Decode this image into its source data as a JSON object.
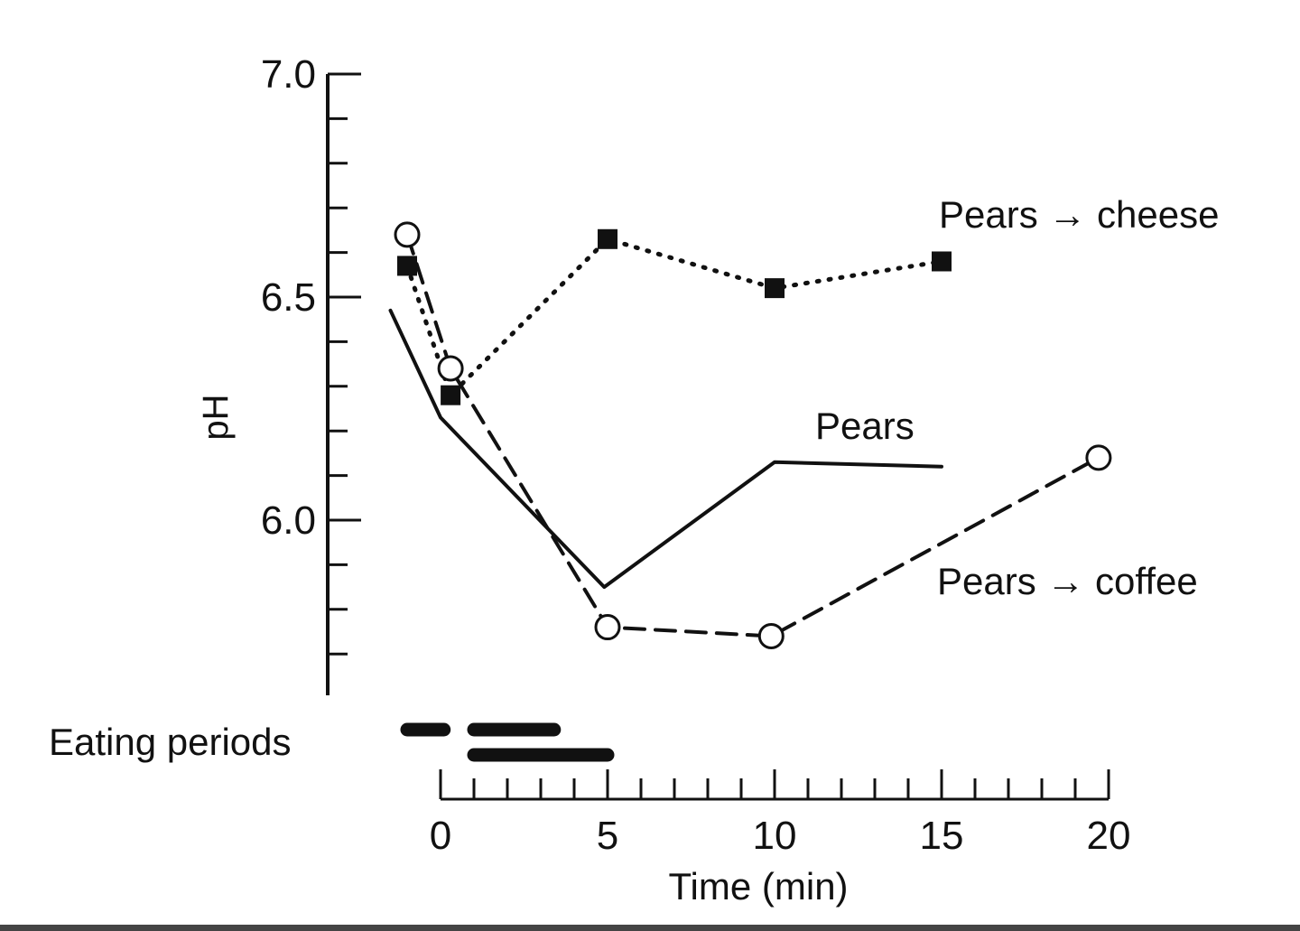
{
  "chart_data": {
    "type": "line",
    "title": "",
    "xlabel": "Time (min)",
    "ylabel": "pH",
    "xlim": [
      -1.5,
      20
    ],
    "ylim": [
      5.6,
      7.0
    ],
    "x_ticks": [
      0,
      5,
      10,
      15,
      20
    ],
    "x_tick_labels": [
      "0",
      "5",
      "10",
      "15",
      "20"
    ],
    "x_minor_step": 1,
    "y_ticks": [
      6.0,
      6.5,
      7.0
    ],
    "y_tick_labels": [
      "6.0",
      "6.5",
      "7.0"
    ],
    "y_minor_step": 0.1,
    "grid": false,
    "series": [
      {
        "name": "Pears → cheese",
        "style": "dotted",
        "marker": "filled-square",
        "x": [
          -1.0,
          0.3,
          5.0,
          10.0,
          15.0
        ],
        "y": [
          6.57,
          6.28,
          6.63,
          6.52,
          6.58
        ]
      },
      {
        "name": "Pears",
        "style": "solid",
        "marker": "none",
        "x": [
          -1.5,
          0.0,
          4.9,
          10.0,
          15.0
        ],
        "y": [
          6.47,
          6.23,
          5.85,
          6.13,
          6.12
        ]
      },
      {
        "name": "Pears → coffee",
        "style": "dashed",
        "marker": "open-circle",
        "x": [
          -1.0,
          0.3,
          5.0,
          9.9,
          19.7
        ],
        "y": [
          6.64,
          6.34,
          5.76,
          5.74,
          6.14
        ]
      }
    ],
    "eating_periods": {
      "label": "Eating periods",
      "bars": [
        [
          -1.0,
          0.1
        ],
        [
          1.0,
          3.4
        ],
        [
          1.0,
          5.0
        ]
      ]
    }
  }
}
